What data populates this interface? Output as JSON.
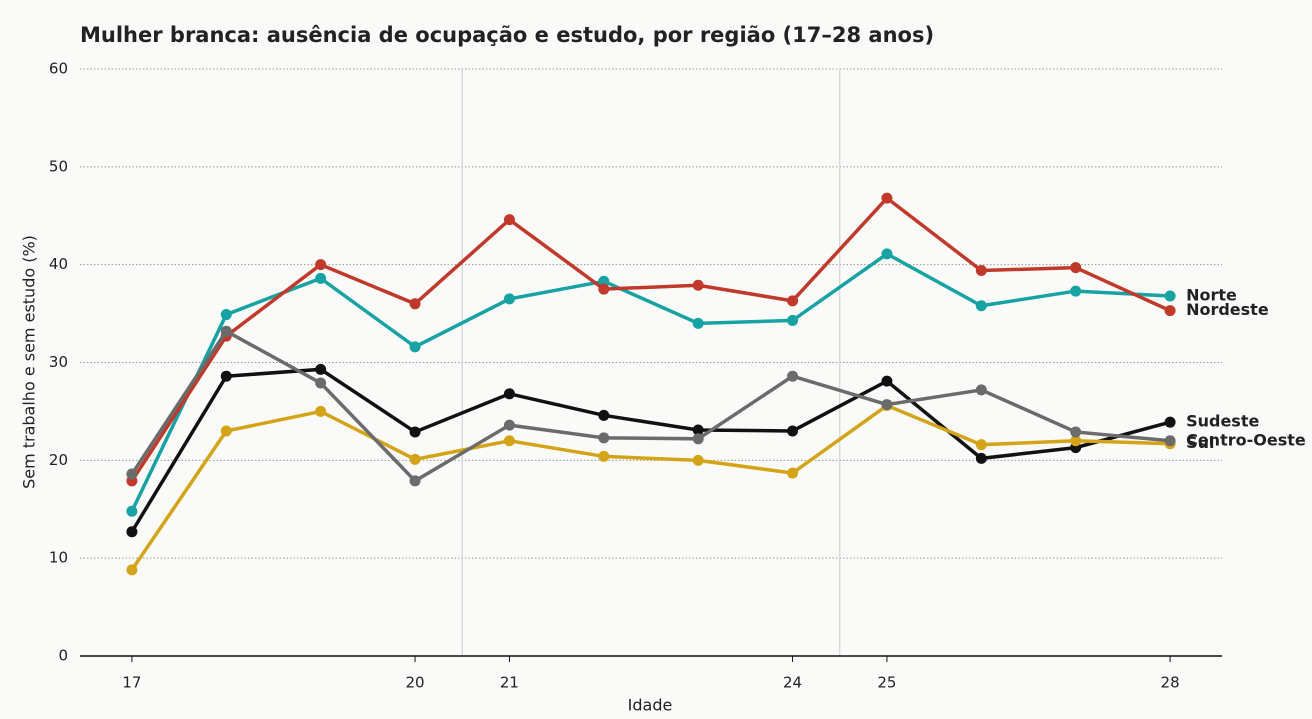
{
  "chart_data": {
    "type": "line",
    "title": "Mulher branca: ausência de ocupação e estudo, por região (17–28 anos)",
    "x_label": "Idade",
    "y_label": "Sem trabalho e sem estudo (%)",
    "x": [
      17,
      18,
      19,
      20,
      21,
      22,
      23,
      24,
      25,
      26,
      27,
      28
    ],
    "series": [
      {
        "name": "Norte",
        "color": "#17a2a4",
        "values": [
          14.8,
          34.9,
          38.6,
          31.6,
          36.5,
          38.3,
          34.0,
          34.3,
          41.1,
          35.8,
          37.3,
          36.8
        ]
      },
      {
        "name": "Nordeste",
        "color": "#c0392b",
        "values": [
          17.9,
          32.7,
          40.0,
          36.0,
          44.6,
          37.5,
          37.9,
          36.3,
          46.8,
          39.4,
          39.7,
          35.3
        ]
      },
      {
        "name": "Sudeste",
        "color": "#111111",
        "values": [
          12.7,
          28.6,
          29.3,
          22.9,
          26.8,
          24.6,
          23.1,
          23.0,
          28.1,
          20.2,
          21.3,
          23.9
        ]
      },
      {
        "name": "Sul",
        "color": "#d4a418",
        "values": [
          8.8,
          23.0,
          25.0,
          20.1,
          22.0,
          20.4,
          20.0,
          18.7,
          25.6,
          21.6,
          22.0,
          21.7
        ]
      },
      {
        "name": "Centro-Oeste",
        "color": "#6b6b6b",
        "values": [
          18.6,
          33.2,
          27.9,
          17.9,
          23.6,
          22.3,
          22.2,
          28.6,
          25.7,
          27.2,
          22.9,
          22.0
        ]
      }
    ],
    "xlim": [
      16.45,
      28.55
    ],
    "xticks": [
      17,
      20,
      21,
      24,
      25,
      28
    ],
    "ylim": [
      0,
      60
    ],
    "yticks": [
      0,
      10,
      20,
      30,
      40,
      50,
      60
    ],
    "vlines": [
      20.5,
      24.5
    ],
    "grid": true
  }
}
